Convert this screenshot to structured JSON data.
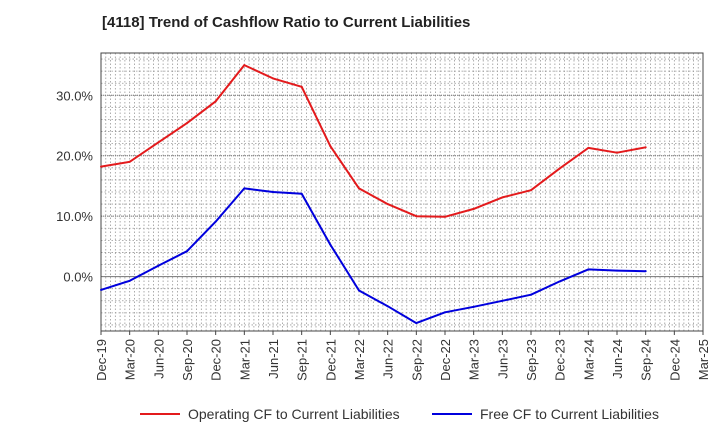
{
  "chart_data": {
    "type": "line",
    "title": "[4118]  Trend of Cashflow Ratio to Current Liabilities",
    "xlabel": "",
    "ylabel": "",
    "categories": [
      "Dec-19",
      "Mar-20",
      "Jun-20",
      "Sep-20",
      "Dec-20",
      "Mar-21",
      "Jun-21",
      "Sep-21",
      "Dec-21",
      "Mar-22",
      "Jun-22",
      "Sep-22",
      "Dec-22",
      "Mar-23",
      "Jun-23",
      "Sep-23",
      "Dec-23",
      "Mar-24",
      "Jun-24",
      "Sep-24",
      "Dec-24",
      "Mar-25"
    ],
    "ylim": [
      -9,
      37
    ],
    "yticks": [
      0,
      10,
      20,
      30
    ],
    "ytick_labels": [
      "0.0%",
      "10.0%",
      "20.0%",
      "30.0%"
    ],
    "grid": true,
    "legend_position": "bottom",
    "series": [
      {
        "name": "Operating CF to Current Liabilities",
        "color": "#e31a1c",
        "values": [
          18.2,
          19.0,
          22.2,
          25.4,
          29.0,
          35.0,
          32.8,
          31.4,
          21.6,
          14.6,
          12.0,
          10.0,
          9.9,
          11.2,
          13.1,
          14.3,
          17.9,
          21.3,
          20.5,
          21.4,
          null,
          null
        ]
      },
      {
        "name": "Free CF to Current Liabilities",
        "color": "#0000dd",
        "values": [
          -2.2,
          -0.7,
          1.8,
          4.2,
          9.1,
          14.6,
          14.0,
          13.7,
          5.3,
          -2.3,
          -4.9,
          -7.7,
          -5.9,
          -5.0,
          -4.0,
          -3.0,
          -0.8,
          1.2,
          1.0,
          0.9,
          null,
          null
        ]
      }
    ]
  }
}
